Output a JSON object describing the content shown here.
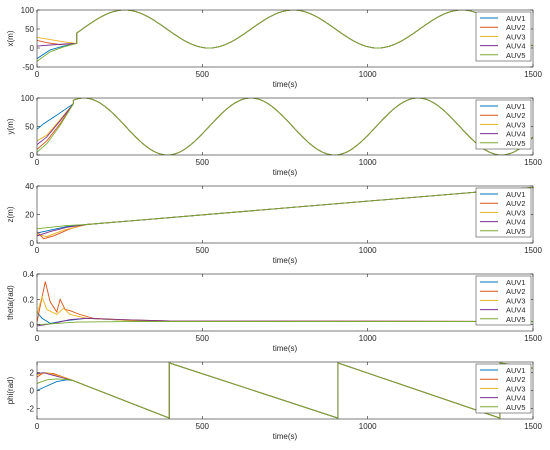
{
  "colors": {
    "axis": "#262626",
    "series": [
      "#0072BD",
      "#D95319",
      "#EDB120",
      "#7E2F8E",
      "#77AC30"
    ]
  },
  "chart_data": [
    {
      "type": "line",
      "ylabel": "x(m)",
      "xlabel": "time(s)",
      "xlim": [
        0,
        1500
      ],
      "ylim": [
        -50,
        100
      ],
      "xticks": [
        0,
        500,
        1000,
        1500
      ],
      "yticks": [
        -50,
        0,
        50,
        100
      ],
      "legend": "top-right",
      "grid": false,
      "series": [
        {
          "name": "AUV1",
          "points": [
            [
              0,
              -28
            ],
            [
              40,
              -5
            ],
            [
              80,
              5
            ],
            [
              120,
              12
            ]
          ]
        },
        {
          "name": "AUV2",
          "points": [
            [
              0,
              20
            ],
            [
              30,
              14
            ],
            [
              70,
              9
            ],
            [
              120,
              12
            ]
          ]
        },
        {
          "name": "AUV3",
          "points": [
            [
              0,
              28
            ],
            [
              40,
              22
            ],
            [
              90,
              15
            ],
            [
              120,
              12
            ]
          ]
        },
        {
          "name": "AUV4",
          "points": [
            [
              0,
              5
            ],
            [
              40,
              8
            ],
            [
              90,
              11
            ],
            [
              120,
              12
            ]
          ]
        },
        {
          "name": "AUV5",
          "points": [
            [
              0,
              -35
            ],
            [
              40,
              -10
            ],
            [
              80,
              3
            ],
            [
              120,
              12
            ]
          ]
        }
      ],
      "common_trajectory": {
        "shape": "cosine",
        "center": 50,
        "amplitude": 50,
        "period": 510,
        "peak_at": 265,
        "from": 120
      }
    },
    {
      "type": "line",
      "ylabel": "y(m)",
      "xlabel": "time(s)",
      "xlim": [
        0,
        1500
      ],
      "ylim": [
        0,
        100
      ],
      "xticks": [
        0,
        500,
        1000,
        1500
      ],
      "yticks": [
        0,
        50,
        100
      ],
      "legend": "top-right",
      "grid": false,
      "series": [
        {
          "name": "AUV1",
          "points": [
            [
              0,
              45
            ],
            [
              20,
              55
            ],
            [
              60,
              70
            ],
            [
              110,
              90
            ]
          ]
        },
        {
          "name": "AUV2",
          "points": [
            [
              0,
              10
            ],
            [
              30,
              25
            ],
            [
              70,
              55
            ],
            [
              110,
              90
            ]
          ]
        },
        {
          "name": "AUV3",
          "points": [
            [
              0,
              25
            ],
            [
              30,
              35
            ],
            [
              70,
              62
            ],
            [
              110,
              90
            ]
          ]
        },
        {
          "name": "AUV4",
          "points": [
            [
              0,
              18
            ],
            [
              30,
              32
            ],
            [
              70,
              60
            ],
            [
              110,
              90
            ]
          ]
        },
        {
          "name": "AUV5",
          "points": [
            [
              0,
              5
            ],
            [
              30,
              20
            ],
            [
              70,
              52
            ],
            [
              110,
              90
            ]
          ]
        }
      ],
      "common_trajectory": {
        "shape": "cosine",
        "center": 50,
        "amplitude": 50,
        "period": 505,
        "peak_at": 142,
        "from": 110
      }
    },
    {
      "type": "line",
      "ylabel": "z(m)",
      "xlabel": "time(s)",
      "xlim": [
        0,
        1500
      ],
      "ylim": [
        0,
        40
      ],
      "xticks": [
        0,
        500,
        1000,
        1500
      ],
      "yticks": [
        0,
        20,
        40
      ],
      "legend": "top-right",
      "grid": false,
      "series": [
        {
          "name": "AUV1",
          "points": [
            [
              0,
              7
            ],
            [
              40,
              9
            ],
            [
              90,
              11.5
            ],
            [
              150,
              13
            ]
          ]
        },
        {
          "name": "AUV2",
          "points": [
            [
              0,
              8
            ],
            [
              20,
              3
            ],
            [
              50,
              5
            ],
            [
              100,
              10
            ],
            [
              150,
              13
            ]
          ]
        },
        {
          "name": "AUV3",
          "points": [
            [
              0,
              6
            ],
            [
              30,
              4.5
            ],
            [
              80,
              9
            ],
            [
              150,
              13
            ]
          ]
        },
        {
          "name": "AUV4",
          "points": [
            [
              0,
              5
            ],
            [
              40,
              8
            ],
            [
              90,
              11
            ],
            [
              150,
              13
            ]
          ]
        },
        {
          "name": "AUV5",
          "points": [
            [
              0,
              10
            ],
            [
              40,
              11
            ],
            [
              90,
              12.2
            ],
            [
              150,
              13
            ]
          ]
        }
      ],
      "common_trajectory": {
        "shape": "linear",
        "from": [
          150,
          13
        ],
        "to": [
          1500,
          39
        ]
      }
    },
    {
      "type": "line",
      "ylabel": "theta(rad)",
      "xlabel": "time(s)",
      "xlim": [
        0,
        1500
      ],
      "ylim": [
        -0.05,
        0.4
      ],
      "xticks": [
        0,
        500,
        1000,
        1500
      ],
      "yticks": [
        0,
        0.2,
        0.4
      ],
      "legend": "top-right",
      "grid": false,
      "series": [
        {
          "name": "AUV1",
          "points": [
            [
              0,
              0.1
            ],
            [
              15,
              0.05
            ],
            [
              40,
              0.01
            ],
            [
              80,
              0.03
            ],
            [
              150,
              0.05
            ],
            [
              300,
              0.03
            ],
            [
              500,
              0.025
            ],
            [
              1500,
              0.025
            ]
          ]
        },
        {
          "name": "AUV2",
          "points": [
            [
              0,
              0.02
            ],
            [
              10,
              0.15
            ],
            [
              25,
              0.34
            ],
            [
              40,
              0.18
            ],
            [
              60,
              0.1
            ],
            [
              70,
              0.2
            ],
            [
              85,
              0.12
            ],
            [
              100,
              0.11
            ],
            [
              130,
              0.08
            ],
            [
              170,
              0.05
            ],
            [
              250,
              0.04
            ],
            [
              400,
              0.03
            ],
            [
              1500,
              0.025
            ]
          ]
        },
        {
          "name": "AUV3",
          "points": [
            [
              0,
              0.08
            ],
            [
              15,
              0.22
            ],
            [
              30,
              0.12
            ],
            [
              60,
              0.08
            ],
            [
              80,
              0.13
            ],
            [
              100,
              0.08
            ],
            [
              150,
              0.05
            ],
            [
              300,
              0.03
            ],
            [
              1500,
              0.025
            ]
          ]
        },
        {
          "name": "AUV4",
          "points": [
            [
              0,
              -0.01
            ],
            [
              50,
              0.01
            ],
            [
              100,
              0.04
            ],
            [
              150,
              0.05
            ],
            [
              250,
              0.04
            ],
            [
              400,
              0.03
            ],
            [
              1500,
              0.025
            ]
          ]
        },
        {
          "name": "AUV5",
          "points": [
            [
              0,
              0.0
            ],
            [
              60,
              0.01
            ],
            [
              120,
              0.02
            ],
            [
              300,
              0.025
            ],
            [
              1500,
              0.025
            ]
          ]
        }
      ]
    },
    {
      "type": "line",
      "ylabel": "phi(rad)",
      "xlabel": "time(s)",
      "xlim": [
        0,
        1500
      ],
      "ylim": [
        -3.2,
        3.2
      ],
      "xticks": [
        0,
        500,
        1000,
        1500
      ],
      "yticks": [
        -2,
        0,
        2
      ],
      "legend": "top-right",
      "grid": false,
      "series": [
        {
          "name": "AUV1",
          "points": [
            [
              0,
              0.0
            ],
            [
              30,
              0.5
            ],
            [
              60,
              1.0
            ],
            [
              90,
              1.2
            ],
            [
              110,
              1.1
            ]
          ]
        },
        {
          "name": "AUV2",
          "points": [
            [
              0,
              1.5
            ],
            [
              20,
              2.0
            ],
            [
              50,
              1.9
            ],
            [
              80,
              1.5
            ],
            [
              110,
              1.1
            ]
          ]
        },
        {
          "name": "AUV3",
          "points": [
            [
              0,
              1.8
            ],
            [
              30,
              2.0
            ],
            [
              60,
              1.7
            ],
            [
              90,
              1.4
            ],
            [
              110,
              1.1
            ]
          ]
        },
        {
          "name": "AUV4",
          "points": [
            [
              0,
              1.9
            ],
            [
              20,
              2.0
            ],
            [
              50,
              1.7
            ],
            [
              80,
              1.4
            ],
            [
              110,
              1.1
            ]
          ]
        },
        {
          "name": "AUV5",
          "points": [
            [
              0,
              0.8
            ],
            [
              30,
              1.2
            ],
            [
              60,
              1.3
            ],
            [
              90,
              1.25
            ],
            [
              110,
              1.1
            ]
          ]
        }
      ],
      "common_trajectory": {
        "shape": "sawtooth",
        "points": [
          [
            110,
            1.1
          ],
          [
            400,
            -3.1
          ],
          [
            400,
            3.1
          ],
          [
            910,
            -3.1
          ],
          [
            910,
            3.1
          ],
          [
            1400,
            -3.1
          ],
          [
            1400,
            3.1
          ],
          [
            1500,
            2.5
          ]
        ]
      }
    }
  ]
}
